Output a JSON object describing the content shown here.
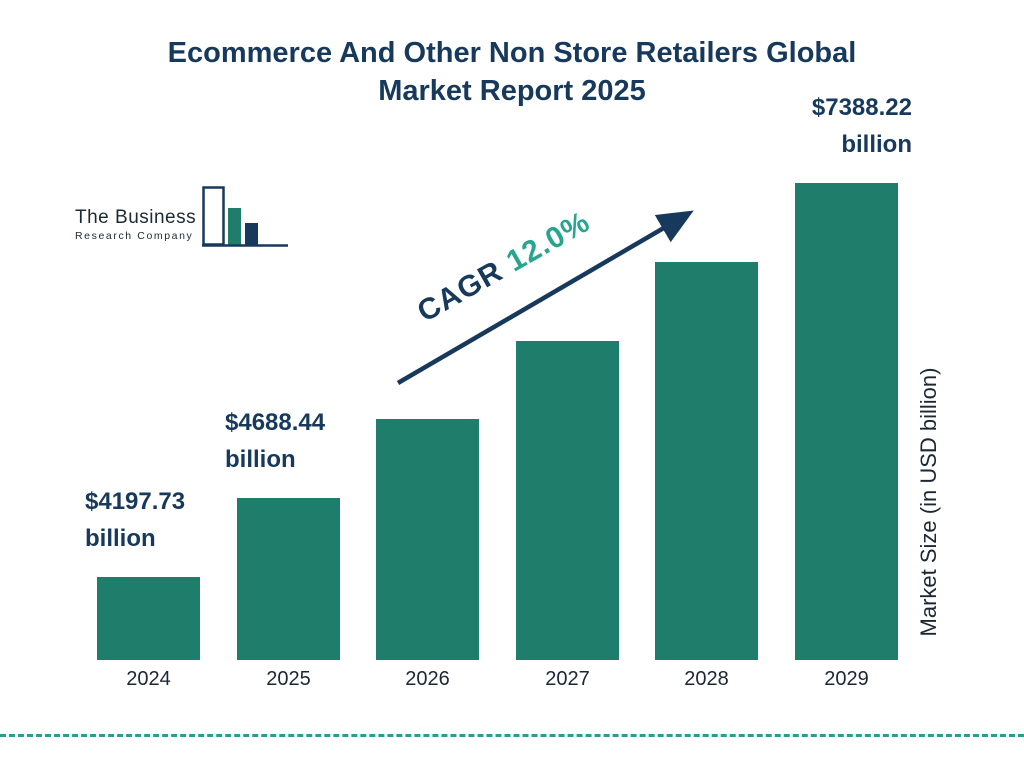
{
  "title": {
    "line1": "Ecommerce And Other Non Store Retailers Global",
    "line2": "Market Report 2025"
  },
  "logo": {
    "name": "The Business",
    "subname": "Research Company"
  },
  "cagr": {
    "label": "CAGR",
    "value": "12.0%"
  },
  "colors": {
    "navy": "#17395c",
    "bar_teal": "#1e7d6b",
    "cagr_teal": "#28a58e",
    "divider_teal": "#2a9d8f"
  },
  "chart_data": {
    "type": "bar",
    "title": "Ecommerce And Other Non Store Retailers Global Market Report 2025",
    "categories": [
      "2024",
      "2025",
      "2026",
      "2027",
      "2028",
      "2029"
    ],
    "values": [
      4197.73,
      4688.44,
      5253.0,
      5886.0,
      6595.0,
      7388.22
    ],
    "unit": "USD billion",
    "ylabel": "Market Size (in USD billion)",
    "bar_labels": [
      [
        "$4197.73",
        "billion"
      ],
      [
        "$4688.44",
        "billion"
      ],
      null,
      null,
      null,
      [
        "$7388.22",
        "billion"
      ]
    ],
    "annotation": "CAGR 12.0%",
    "ylim": null,
    "grid": false,
    "legend": null
  }
}
